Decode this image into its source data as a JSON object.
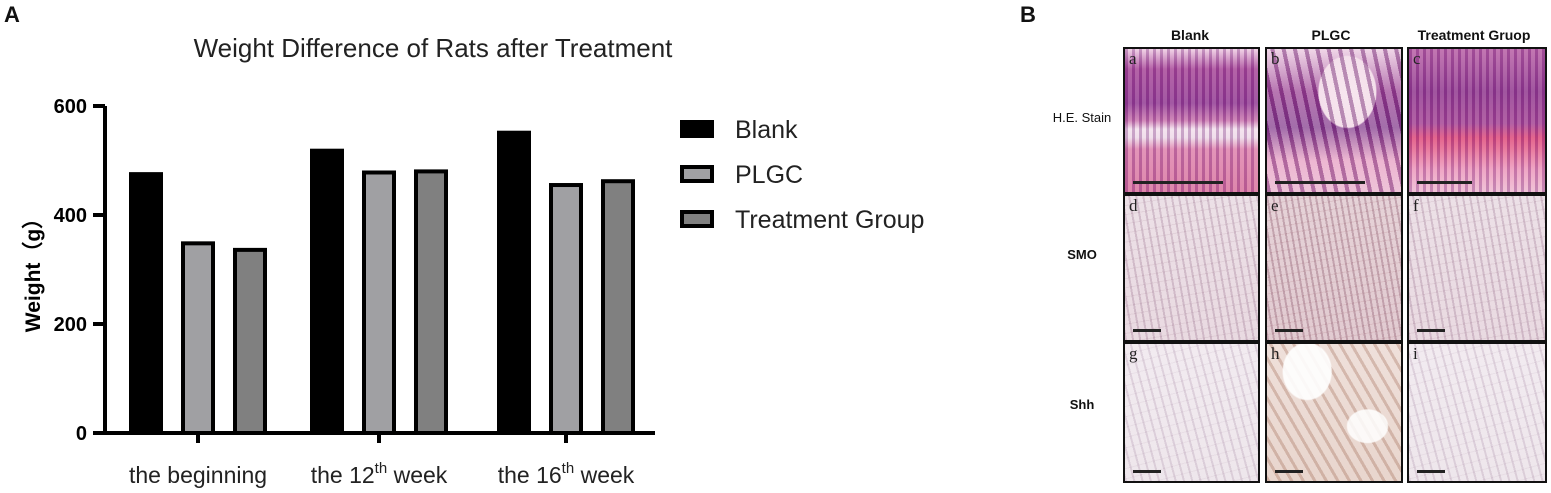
{
  "panels": {
    "a_label": "A",
    "b_label": "B"
  },
  "chart_data": {
    "type": "bar",
    "title": "Weight Difference of Rats after Treatment",
    "ylabel": "Weight（g）",
    "xlabel": "",
    "ylim": [
      0,
      600
    ],
    "yticks": [
      0,
      200,
      400,
      600
    ],
    "categories": [
      {
        "label": "the beginning",
        "base": "the beginning",
        "sup": "",
        "tail": ""
      },
      {
        "label": "the 12th week",
        "base": "the 12",
        "sup": "th",
        "tail": " week"
      },
      {
        "label": "the 16th week",
        "base": "the 16",
        "sup": "th",
        "tail": " week"
      }
    ],
    "series": [
      {
        "name": "Blank",
        "color": "#000000",
        "values": [
          475,
          518,
          551
        ]
      },
      {
        "name": "PLGC",
        "color": "#a0a0a3",
        "values": [
          348,
          478,
          455
        ]
      },
      {
        "name": "Treatment Group",
        "color": "#808080",
        "values": [
          336,
          480,
          462
        ]
      }
    ],
    "legend_position": "right",
    "grid": false
  },
  "micrographs": {
    "columns": [
      "Blank",
      "PLGC",
      "Treatment Gruop"
    ],
    "rows": [
      "H.E. Stain",
      "SMO",
      "Shh"
    ],
    "tags": [
      [
        "a",
        "b",
        "c"
      ],
      [
        "d",
        "e",
        "f"
      ],
      [
        "g",
        "h",
        "i"
      ]
    ]
  }
}
